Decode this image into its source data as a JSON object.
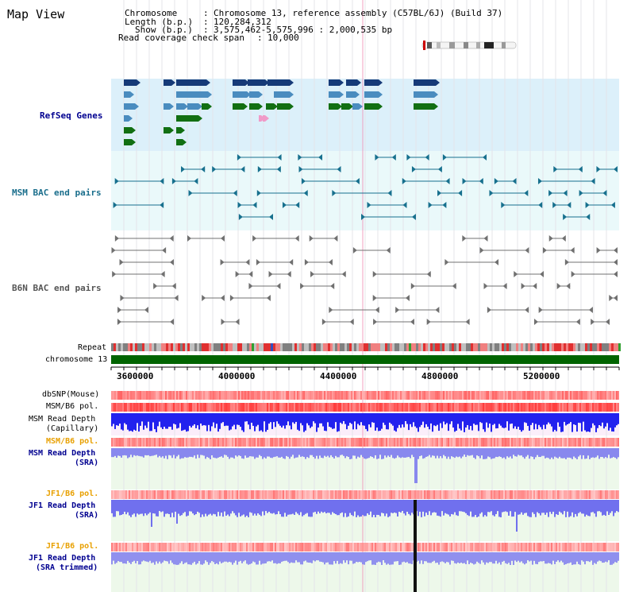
{
  "title": "Map View",
  "info": {
    "chromosome_label": "Chromosome",
    "chromosome_value": "Chromosome 13, reference assembly (C57BL/6J) (Build 37)",
    "length_label": "Length (b.p.)",
    "length_value": "120,284,312",
    "show_label": "Show (b.p.)",
    "show_value": "3,575,462-5,575,996 : 2,000,535 bp",
    "read_coverage_label": "Read coverage check span",
    "read_coverage_value": "10,000"
  },
  "tracks": {
    "refseq": "RefSeq Genes",
    "msm_bac": "MSM BAC end pairs",
    "b6n_bac": "B6N BAC end pairs",
    "repeat": "Repeat",
    "chromosome": "chromosome 13",
    "dbsnp": "dbSNP(Mouse)",
    "msm_b6_pol_1": "MSM/B6 pol.",
    "msm_read_depth_cap_1": "MSM Read Depth",
    "msm_read_depth_cap_2": "(Capillary)",
    "msm_b6_pol_2": "MSM/B6 pol.",
    "msm_read_depth_sra_1": "MSM Read Depth",
    "msm_read_depth_sra_2": "(SRA)",
    "jf1_b6_pol_1": "JF1/B6 pol.",
    "jf1_read_depth_sra_1": "JF1 Read Depth",
    "jf1_read_depth_sra_2": "(SRA)",
    "jf1_b6_pol_2": "JF1/B6 pol.",
    "jf1_read_depth_trim_1": "JF1 Read Depth",
    "jf1_read_depth_trim_2": "(SRA trimmed)"
  },
  "axis": {
    "ticks": [
      "3600000",
      "4000000",
      "4400000",
      "4800000",
      "5200000"
    ]
  },
  "colors": {
    "refseq_bg": "#dcf0fa",
    "bac_bg": "#eaf9fa",
    "gene_navy": "#163a78",
    "gene_blue": "#4a8cbf",
    "gene_green": "#126f12",
    "gene_pink": "#f09ac8",
    "msm_bac": "#17708e",
    "b6n_bac": "#707070",
    "chromosome_bar": "#006400",
    "depth_blue": "#2222ee",
    "polymorphism_red": "#f03030",
    "label_blue": "#000090",
    "label_teal": "#1a6e8c",
    "label_orange": "#e8a000",
    "highlight": "#f0a0c0"
  }
}
